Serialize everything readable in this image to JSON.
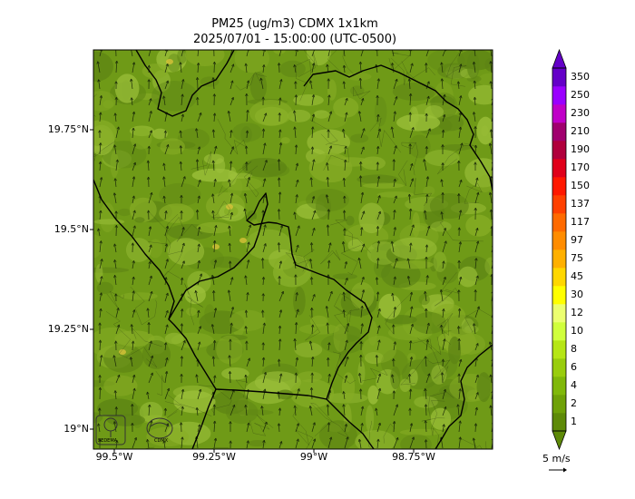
{
  "title": {
    "line1": "PM25 (ug/m3) CDMX 1x1km",
    "line2": "2025/07/01 - 15:00:00 (UTC-0500)"
  },
  "map": {
    "y_ticks": [
      "19.75°N",
      "19.5°N",
      "19.25°N",
      "19°N"
    ],
    "x_ticks": [
      "99.5°W",
      "99.25°W",
      "99°W",
      "98.75°W"
    ],
    "background_colors": [
      "#6f9a17",
      "#86ac25",
      "#9cc03a",
      "#5d8414"
    ],
    "boundary_color": "#000000"
  },
  "colorbar": {
    "levels": [
      "1",
      "2",
      "4",
      "6",
      "8",
      "10",
      "12",
      "30",
      "45",
      "75",
      "97",
      "117",
      "137",
      "150",
      "170",
      "190",
      "210",
      "230",
      "250",
      "350"
    ],
    "colors": [
      "#5e8a08",
      "#6fa108",
      "#80b80a",
      "#99cd0d",
      "#b6e615",
      "#d0ff3c",
      "#ecff70",
      "#ffff00",
      "#ffd700",
      "#ffb000",
      "#ff8c00",
      "#ff6a00",
      "#ff4000",
      "#ff1800",
      "#e0001a",
      "#b0003c",
      "#a0006e",
      "#c000c8",
      "#9a00ff",
      "#6400c8"
    ]
  },
  "wind_reference": {
    "label": "5 m/s"
  },
  "logos": {
    "sedema": "SEDEMA",
    "cdmx": "CDMX"
  }
}
